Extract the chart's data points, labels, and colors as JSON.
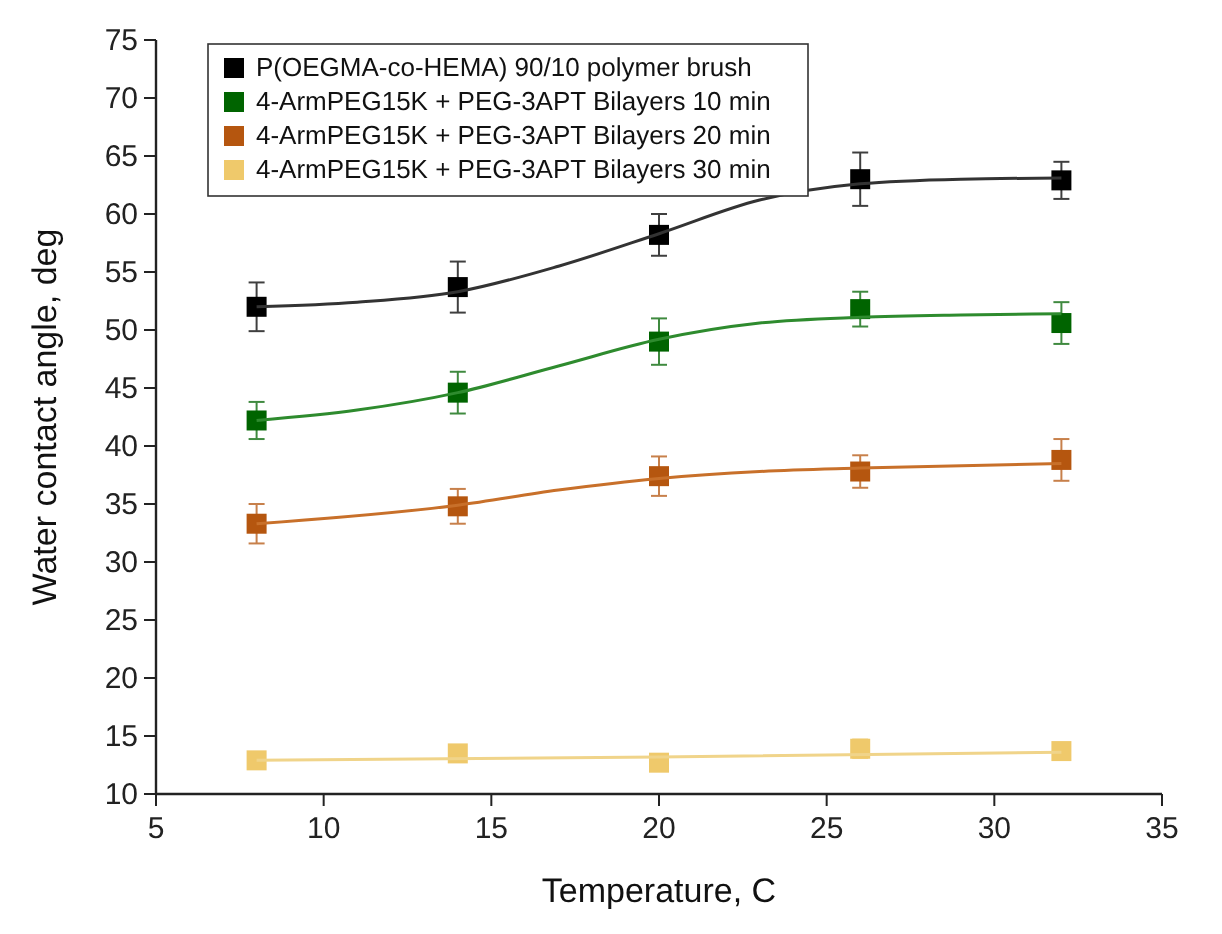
{
  "chart_data": {
    "type": "scatter",
    "xlabel": "Temperature, C",
    "ylabel": "Water contact angle, deg",
    "xlim": [
      5,
      35
    ],
    "ylim": [
      10,
      75
    ],
    "xticks": [
      5,
      10,
      15,
      20,
      25,
      30,
      35
    ],
    "yticks": [
      10,
      15,
      20,
      25,
      30,
      35,
      40,
      45,
      50,
      55,
      60,
      65,
      70,
      75
    ],
    "legend": "top left",
    "marker": "square",
    "grid": false,
    "series": [
      {
        "name": "P(OEGMA-co-HEMA) 90/10 polymer brush",
        "color": "#000000",
        "x": [
          8,
          14,
          20,
          26,
          32
        ],
        "values": [
          52,
          53.7,
          58.2,
          63,
          62.9
        ],
        "errors": [
          2.1,
          2.2,
          1.8,
          2.3,
          1.6
        ]
      },
      {
        "name": "4-ArmPEG15K + PEG-3APT Bilayers 10 min",
        "color": "#006400",
        "x": [
          8,
          14,
          20,
          26,
          32
        ],
        "values": [
          42.2,
          44.6,
          49,
          51.8,
          50.6
        ],
        "errors": [
          1.6,
          1.8,
          2,
          1.5,
          1.8
        ]
      },
      {
        "name": "4-ArmPEG15K + PEG-3APT Bilayers 20 min",
        "color": "#b5560f",
        "x": [
          8,
          14,
          20,
          26,
          32
        ],
        "values": [
          33.3,
          34.8,
          37.4,
          37.8,
          38.8
        ],
        "errors": [
          1.7,
          1.5,
          1.7,
          1.4,
          1.8
        ]
      },
      {
        "name": "4-ArmPEG15K + PEG-3APT Bilayers 30 min",
        "color": "#efc96b",
        "x": [
          8,
          14,
          20,
          26,
          32
        ],
        "values": [
          12.9,
          13.5,
          12.7,
          13.9,
          13.7
        ],
        "errors": [
          0.7,
          0.7,
          0.4,
          0.8,
          0.7
        ]
      },
      {
        "type": "line",
        "marker": "none",
        "color": "#333333",
        "x": [
          8,
          11,
          14,
          17,
          20,
          23,
          26,
          29,
          32
        ],
        "values": [
          52,
          52.4,
          53.3,
          55.5,
          58.3,
          61.2,
          62.6,
          63,
          63.1
        ]
      },
      {
        "type": "line",
        "marker": "none",
        "color": "#2e8b2e",
        "x": [
          8,
          11,
          14,
          17,
          20,
          23,
          26,
          29,
          32
        ],
        "values": [
          42.2,
          43.1,
          44.6,
          46.9,
          49.2,
          50.6,
          51.1,
          51.3,
          51.4
        ]
      },
      {
        "type": "line",
        "marker": "none",
        "color": "#c8702a",
        "x": [
          8,
          14,
          17,
          20,
          23,
          26,
          32
        ],
        "values": [
          33.3,
          34.9,
          36.2,
          37.2,
          37.8,
          38.1,
          38.5
        ]
      },
      {
        "type": "line",
        "marker": "none",
        "color": "#f0d48a",
        "x": [
          8,
          20,
          32
        ],
        "values": [
          12.9,
          13.2,
          13.6
        ]
      }
    ]
  }
}
